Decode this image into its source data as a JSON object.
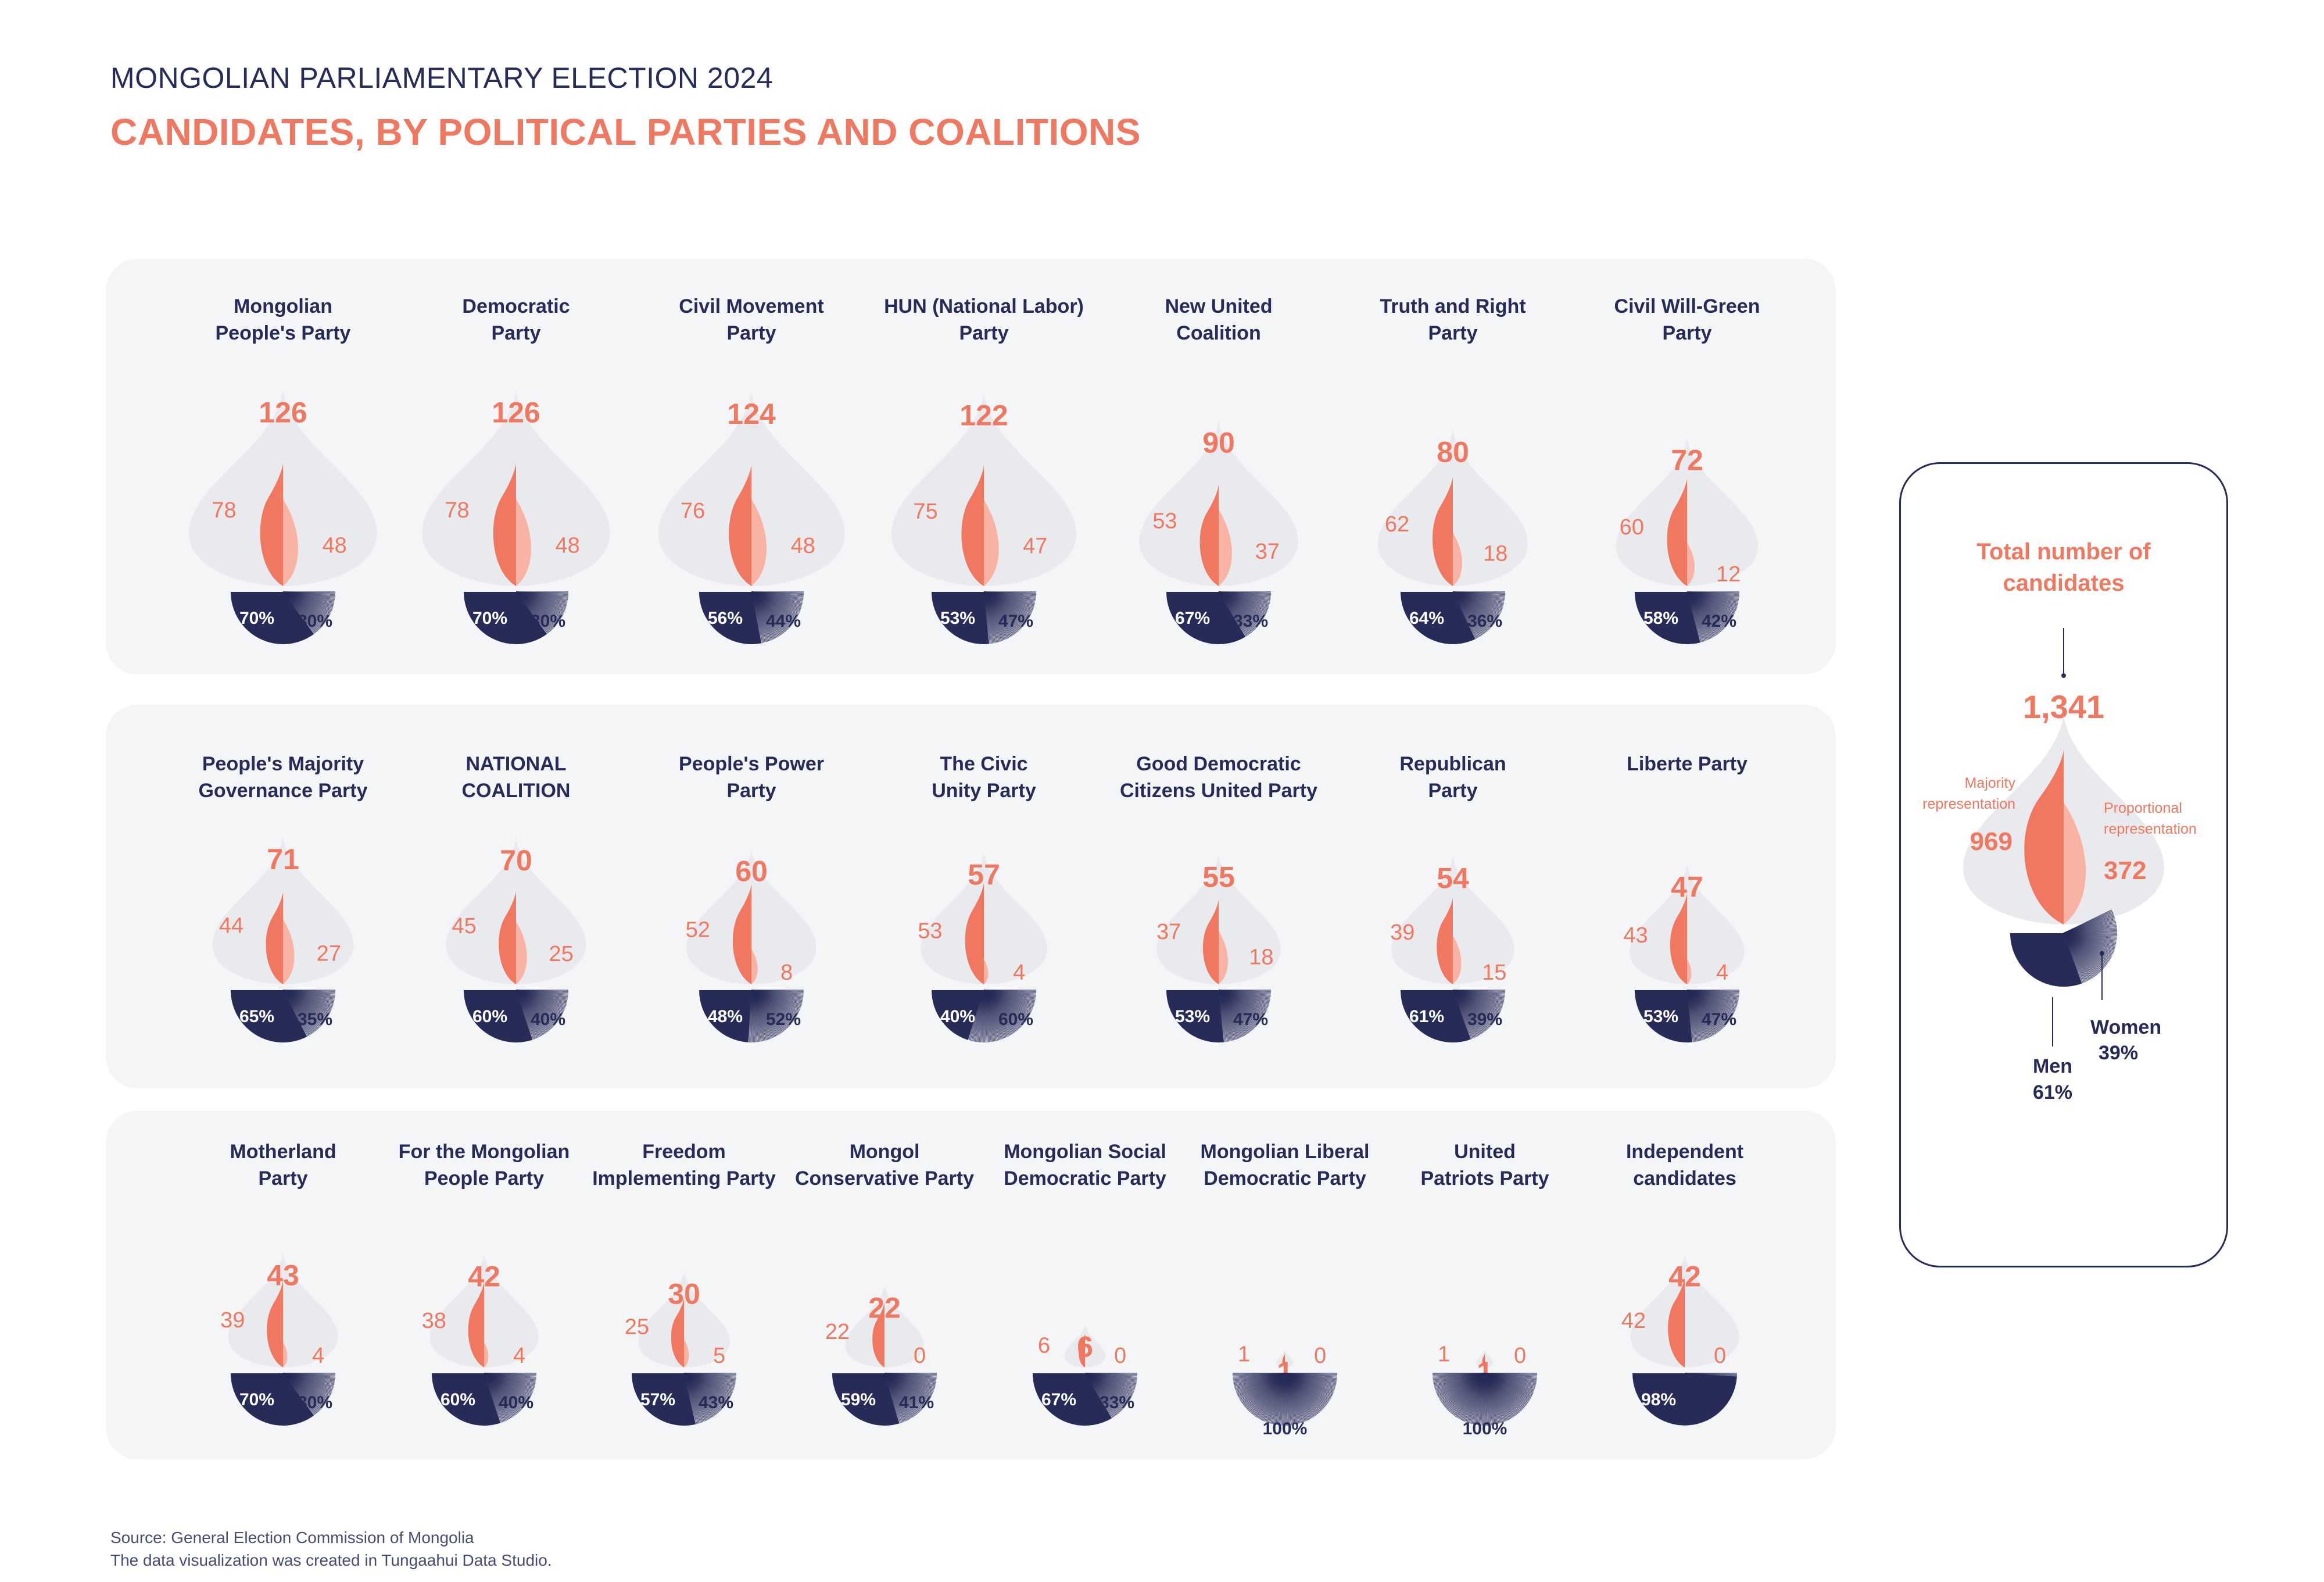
{
  "header": {
    "subtitle": "MONGOLIAN PARLIAMENTARY ELECTION 2024",
    "title": "CANDIDATES, BY POLITICAL PARTIES AND COALITIONS"
  },
  "colors": {
    "navy": "#262b57",
    "coral": "#f07860",
    "coral_light": "#f9b3a5",
    "flame_bg": "#e9eaee",
    "panel_bg": "#f4f5f7"
  },
  "chart_data": {
    "type": "flame-pie",
    "parties": [
      {
        "name_lines": [
          "Mongolian",
          "People's Party"
        ],
        "total": 126,
        "majority": 78,
        "proportional": 48,
        "men_pct": 70,
        "women_pct": 30
      },
      {
        "name_lines": [
          "Democratic",
          "Party"
        ],
        "total": 126,
        "majority": 78,
        "proportional": 48,
        "men_pct": 70,
        "women_pct": 30
      },
      {
        "name_lines": [
          "Civil Movement",
          "Party"
        ],
        "total": 124,
        "majority": 76,
        "proportional": 48,
        "men_pct": 56,
        "women_pct": 44
      },
      {
        "name_lines": [
          "HUN (National Labor)",
          "Party"
        ],
        "total": 122,
        "majority": 75,
        "proportional": 47,
        "men_pct": 53,
        "women_pct": 47
      },
      {
        "name_lines": [
          "New United",
          "Coalition"
        ],
        "total": 90,
        "majority": 53,
        "proportional": 37,
        "men_pct": 67,
        "women_pct": 33
      },
      {
        "name_lines": [
          "Truth and Right",
          "Party"
        ],
        "total": 80,
        "majority": 62,
        "proportional": 18,
        "men_pct": 64,
        "women_pct": 36
      },
      {
        "name_lines": [
          "Civil Will-Green",
          "Party"
        ],
        "total": 72,
        "majority": 60,
        "proportional": 12,
        "men_pct": 58,
        "women_pct": 42
      },
      {
        "name_lines": [
          "People's Majority",
          "Governance Party"
        ],
        "total": 71,
        "majority": 44,
        "proportional": 27,
        "men_pct": 65,
        "women_pct": 35
      },
      {
        "name_lines": [
          "NATIONAL",
          "COALITION"
        ],
        "total": 70,
        "majority": 45,
        "proportional": 25,
        "men_pct": 60,
        "women_pct": 40
      },
      {
        "name_lines": [
          "People's Power",
          "Party"
        ],
        "total": 60,
        "majority": 52,
        "proportional": 8,
        "men_pct": 48,
        "women_pct": 52
      },
      {
        "name_lines": [
          "The Civic",
          "Unity Party"
        ],
        "total": 57,
        "majority": 53,
        "proportional": 4,
        "men_pct": 40,
        "women_pct": 60
      },
      {
        "name_lines": [
          "Good Democratic",
          "Citizens United Party"
        ],
        "total": 55,
        "majority": 37,
        "proportional": 18,
        "men_pct": 53,
        "women_pct": 47
      },
      {
        "name_lines": [
          "Republican",
          "Party"
        ],
        "total": 54,
        "majority": 39,
        "proportional": 15,
        "men_pct": 61,
        "women_pct": 39
      },
      {
        "name_lines": [
          "Liberte Party"
        ],
        "total": 47,
        "majority": 43,
        "proportional": 4,
        "men_pct": 53,
        "women_pct": 47
      },
      {
        "name_lines": [
          "Motherland",
          "Party"
        ],
        "total": 43,
        "majority": 39,
        "proportional": 4,
        "men_pct": 70,
        "women_pct": 30
      },
      {
        "name_lines": [
          "For the Mongolian",
          "People Party"
        ],
        "total": 42,
        "majority": 38,
        "proportional": 4,
        "men_pct": 60,
        "women_pct": 40
      },
      {
        "name_lines": [
          "Freedom",
          "Implementing Party"
        ],
        "total": 30,
        "majority": 25,
        "proportional": 5,
        "men_pct": 57,
        "women_pct": 43
      },
      {
        "name_lines": [
          "Mongol",
          "Conservative Party"
        ],
        "total": 22,
        "majority": 22,
        "proportional": 0,
        "men_pct": 59,
        "women_pct": 41
      },
      {
        "name_lines": [
          "Mongolian Social",
          "Democratic Party"
        ],
        "total": 6,
        "majority": 6,
        "proportional": 0,
        "men_pct": 67,
        "women_pct": 33
      },
      {
        "name_lines": [
          "Mongolian Liberal",
          "Democratic Party"
        ],
        "total": 1,
        "majority": 1,
        "proportional": 0,
        "men_pct": 0,
        "women_pct": 100
      },
      {
        "name_lines": [
          "United",
          "Patriots Party"
        ],
        "total": 1,
        "majority": 1,
        "proportional": 0,
        "men_pct": 0,
        "women_pct": 100
      },
      {
        "name_lines": [
          "Independent",
          "candidates"
        ],
        "total": 42,
        "majority": 42,
        "proportional": 0,
        "men_pct": 98,
        "women_pct": 2
      }
    ],
    "total": {
      "title_lines": [
        "Total number of",
        "candidates"
      ],
      "total_label": "1,341",
      "majority": 969,
      "proportional": 372,
      "majority_label_lines": [
        "Majority",
        "representation"
      ],
      "proportional_label_lines": [
        "Proportional",
        "representation"
      ],
      "men_label": "Men",
      "men_pct": 61,
      "women_label": "Women",
      "women_pct": 39
    }
  },
  "footer": {
    "source": "Source: General Election Commission of Mongolia",
    "credit": "The data visualization was created in Tungaahui Data Studio."
  }
}
